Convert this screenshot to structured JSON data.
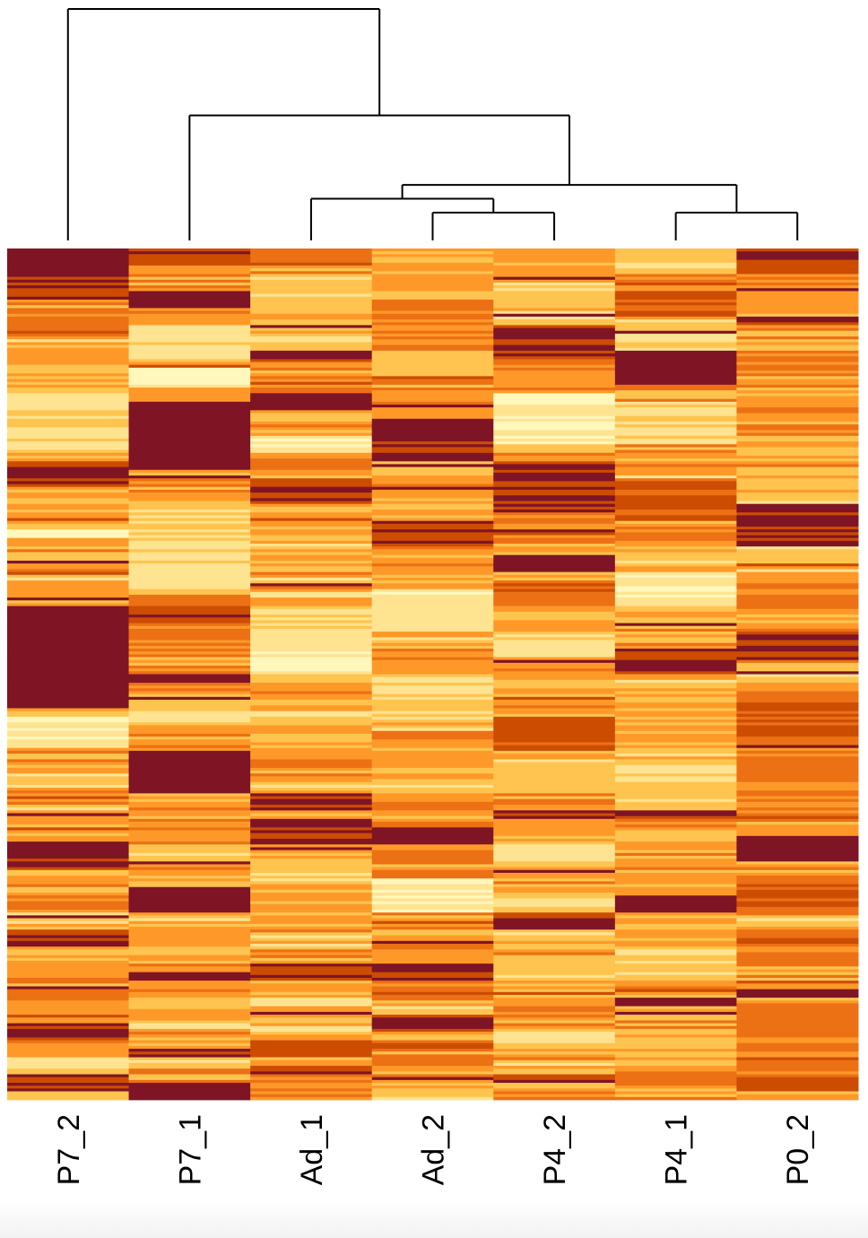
{
  "chart_data": {
    "type": "heatmap",
    "columns": [
      "P7_2",
      "P7_1",
      "Ad_1",
      "Ad_2",
      "P4_2",
      "P4_1",
      "P0_2"
    ],
    "n_rows": 300,
    "colormap": [
      "#fff7bc",
      "#fee391",
      "#fec44f",
      "#fe9929",
      "#ec7014",
      "#cc4c02",
      "#7f1425"
    ],
    "dendrogram": {
      "leaf_order": [
        "P7_2",
        "P7_1",
        "Ad_1",
        "Ad_2",
        "P4_2",
        "P4_1",
        "P0_2"
      ],
      "merges": [
        {
          "left": "Ad_2",
          "right": "P4_2",
          "height": 0.12
        },
        {
          "left": "P4_1",
          "right": "P0_2",
          "height": 0.12
        },
        {
          "left": "Ad_1",
          "right": "(Ad_2,P4_2)",
          "height": 0.18
        },
        {
          "left": "(Ad_1,Ad_2,P4_2)",
          "right": "(P4_1,P0_2)",
          "height": 0.24
        },
        {
          "left": "P7_1",
          "right": "(Ad_1,Ad_2,P4_2,P4_1,P0_2)",
          "height": 0.54
        },
        {
          "left": "P7_2",
          "right": "(P7_1,Ad_1,Ad_2,P4_2,P4_1,P0_2)",
          "height": 1.0
        }
      ]
    },
    "blocks": {
      "P7_2": [
        [
          0.0,
          0.03,
          0.95
        ],
        [
          0.03,
          0.06,
          0.85
        ],
        [
          0.08,
          0.1,
          0.7
        ],
        [
          0.13,
          0.16,
          0.45
        ],
        [
          0.17,
          0.24,
          0.25
        ],
        [
          0.25,
          0.28,
          0.85
        ],
        [
          0.33,
          0.34,
          0.05
        ],
        [
          0.42,
          0.54,
          0.95
        ],
        [
          0.55,
          0.58,
          0.15
        ],
        [
          0.7,
          0.73,
          0.9
        ],
        [
          0.8,
          0.82,
          0.9
        ],
        [
          0.91,
          0.93,
          0.85
        ],
        [
          0.95,
          0.97,
          0.3
        ],
        [
          0.97,
          0.99,
          0.85
        ]
      ],
      "P7_1": [
        [
          0.0,
          0.02,
          0.8
        ],
        [
          0.05,
          0.07,
          0.95
        ],
        [
          0.09,
          0.13,
          0.2
        ],
        [
          0.14,
          0.16,
          0.05
        ],
        [
          0.18,
          0.26,
          0.95
        ],
        [
          0.3,
          0.4,
          0.25
        ],
        [
          0.42,
          0.44,
          0.85
        ],
        [
          0.45,
          0.48,
          0.6
        ],
        [
          0.5,
          0.51,
          0.95
        ],
        [
          0.53,
          0.56,
          0.3
        ],
        [
          0.59,
          0.64,
          0.95
        ],
        [
          0.67,
          0.7,
          0.55
        ],
        [
          0.75,
          0.78,
          0.95
        ],
        [
          0.85,
          0.86,
          0.95
        ],
        [
          0.94,
          0.95,
          0.9
        ],
        [
          0.98,
          1.0,
          0.95
        ]
      ],
      "Ad_1": [
        [
          0.0,
          0.02,
          0.7
        ],
        [
          0.03,
          0.08,
          0.35
        ],
        [
          0.1,
          0.12,
          0.3
        ],
        [
          0.12,
          0.13,
          0.9
        ],
        [
          0.17,
          0.19,
          0.95
        ],
        [
          0.22,
          0.24,
          0.2
        ],
        [
          0.27,
          0.3,
          0.85
        ],
        [
          0.36,
          0.38,
          0.4
        ],
        [
          0.42,
          0.46,
          0.25
        ],
        [
          0.46,
          0.5,
          0.15
        ],
        [
          0.55,
          0.58,
          0.4
        ],
        [
          0.64,
          0.66,
          0.9
        ],
        [
          0.67,
          0.7,
          0.85
        ],
        [
          0.75,
          0.79,
          0.45
        ],
        [
          0.84,
          0.86,
          0.85
        ],
        [
          0.93,
          0.95,
          0.85
        ],
        [
          0.96,
          0.97,
          0.9
        ]
      ],
      "Ad_2": [
        [
          0.0,
          0.05,
          0.45
        ],
        [
          0.06,
          0.1,
          0.6
        ],
        [
          0.12,
          0.15,
          0.35
        ],
        [
          0.16,
          0.18,
          0.5
        ],
        [
          0.2,
          0.25,
          0.9
        ],
        [
          0.32,
          0.35,
          0.85
        ],
        [
          0.4,
          0.45,
          0.2
        ],
        [
          0.5,
          0.55,
          0.3
        ],
        [
          0.58,
          0.61,
          0.45
        ],
        [
          0.68,
          0.7,
          0.95
        ],
        [
          0.74,
          0.78,
          0.15
        ],
        [
          0.84,
          0.86,
          0.9
        ],
        [
          0.9,
          0.92,
          0.85
        ],
        [
          0.93,
          0.94,
          0.7
        ]
      ],
      "P4_2": [
        [
          0.0,
          0.03,
          0.5
        ],
        [
          0.05,
          0.07,
          0.35
        ],
        [
          0.09,
          0.13,
          0.85
        ],
        [
          0.13,
          0.17,
          0.55
        ],
        [
          0.17,
          0.23,
          0.15
        ],
        [
          0.25,
          0.31,
          0.85
        ],
        [
          0.36,
          0.38,
          0.95
        ],
        [
          0.39,
          0.42,
          0.7
        ],
        [
          0.45,
          0.48,
          0.25
        ],
        [
          0.55,
          0.59,
          0.8
        ],
        [
          0.6,
          0.64,
          0.35
        ],
        [
          0.66,
          0.67,
          0.9
        ],
        [
          0.7,
          0.72,
          0.2
        ],
        [
          0.78,
          0.8,
          0.85
        ],
        [
          0.83,
          0.86,
          0.3
        ],
        [
          0.92,
          0.94,
          0.3
        ],
        [
          0.97,
          0.98,
          0.85
        ]
      ],
      "P4_1": [
        [
          0.0,
          0.03,
          0.3
        ],
        [
          0.05,
          0.08,
          0.75
        ],
        [
          0.1,
          0.12,
          0.25
        ],
        [
          0.12,
          0.16,
          0.95
        ],
        [
          0.18,
          0.23,
          0.3
        ],
        [
          0.27,
          0.32,
          0.75
        ],
        [
          0.38,
          0.42,
          0.2
        ],
        [
          0.47,
          0.5,
          0.85
        ],
        [
          0.53,
          0.58,
          0.45
        ],
        [
          0.6,
          0.66,
          0.3
        ],
        [
          0.66,
          0.67,
          0.9
        ],
        [
          0.76,
          0.78,
          0.9
        ],
        [
          0.82,
          0.86,
          0.35
        ],
        [
          0.88,
          0.89,
          0.95
        ],
        [
          0.93,
          0.96,
          0.4
        ]
      ],
      "P0_2": [
        [
          0.0,
          0.03,
          0.8
        ],
        [
          0.05,
          0.08,
          0.5
        ],
        [
          0.08,
          0.09,
          0.9
        ],
        [
          0.12,
          0.15,
          0.6
        ],
        [
          0.18,
          0.2,
          0.55
        ],
        [
          0.22,
          0.25,
          0.4
        ],
        [
          0.3,
          0.35,
          0.9
        ],
        [
          0.38,
          0.43,
          0.6
        ],
        [
          0.45,
          0.48,
          0.85
        ],
        [
          0.52,
          0.58,
          0.7
        ],
        [
          0.6,
          0.65,
          0.6
        ],
        [
          0.69,
          0.72,
          0.95
        ],
        [
          0.74,
          0.78,
          0.7
        ],
        [
          0.8,
          0.84,
          0.65
        ],
        [
          0.87,
          0.88,
          0.95
        ],
        [
          0.9,
          0.95,
          0.6
        ],
        [
          0.97,
          0.99,
          0.75
        ]
      ]
    }
  }
}
